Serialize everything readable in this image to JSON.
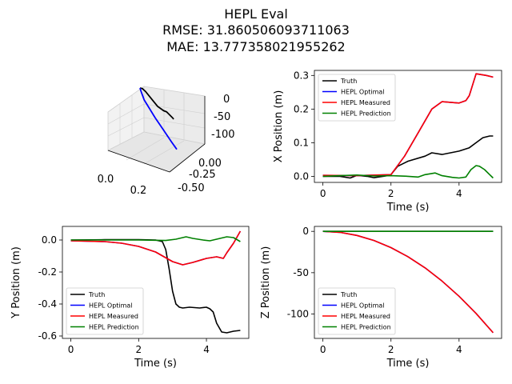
{
  "figure": {
    "title_line1": "HEPL Eval",
    "title_line2": "RMSE: 31.860506093711063",
    "title_line3": "MAE: 13.777358021955262"
  },
  "chart_data": [
    {
      "type": "line3d",
      "title": "",
      "x_ticks": [
        "0.0",
        "0.2"
      ],
      "y_ticks": [
        "0.00",
        "-0.25",
        "-0.50"
      ],
      "z_ticks": [
        "0",
        "-50",
        "-100"
      ],
      "series": [
        {
          "name": "Truth",
          "color": "#000000",
          "x": [
            0,
            0.02,
            0.02,
            0.03,
            0.05,
            0.08,
            0.1,
            0.12,
            0.12
          ],
          "y": [
            0,
            0,
            -0.01,
            -0.05,
            -0.35,
            -0.42,
            -0.43,
            -0.55,
            -0.57
          ],
          "z": [
            0,
            0,
            0,
            0,
            0,
            0,
            0,
            0,
            0
          ]
        },
        {
          "name": "HEPL Measured",
          "color": "#0000ff",
          "x": [
            0,
            0.005,
            0.02,
            0.08,
            0.15,
            0.22,
            0.3
          ],
          "y": [
            0,
            -0.005,
            -0.05,
            -0.15,
            -0.13,
            -0.1,
            0.05
          ],
          "z": [
            0,
            -5,
            -20,
            -45,
            -70,
            -95,
            -123
          ]
        }
      ]
    },
    {
      "type": "line",
      "xlabel": "Time (s)",
      "ylabel": "X Position (m)",
      "xlim": [
        -0.25,
        5.25
      ],
      "ylim": [
        -0.018,
        0.315
      ],
      "x_ticks": [
        "0",
        "2",
        "4"
      ],
      "y_ticks": [
        "0.0",
        "0.1",
        "0.2",
        "0.3"
      ],
      "legend": {
        "placement": "top-left"
      },
      "series": [
        {
          "name": "Truth",
          "color": "#000000",
          "x": [
            0,
            0.5,
            0.8,
            1.0,
            1.3,
            1.5,
            1.9,
            2.0,
            2.2,
            2.5,
            3.0,
            3.2,
            3.5,
            4.0,
            4.3,
            4.5,
            4.7,
            4.9,
            5.0
          ],
          "y": [
            0,
            0,
            -0.005,
            0.003,
            0,
            -0.004,
            0.002,
            0.005,
            0.03,
            0.045,
            0.06,
            0.07,
            0.065,
            0.075,
            0.085,
            0.1,
            0.115,
            0.12,
            0.12
          ]
        },
        {
          "name": "HEPL Optimal",
          "color": "#0000ff",
          "x": [
            0,
            1,
            2,
            2.4,
            2.8,
            3.2,
            3.5,
            4.0,
            4.2,
            4.3,
            4.5,
            4.8,
            5.0
          ],
          "y": [
            0.003,
            0.002,
            0.005,
            0.06,
            0.13,
            0.2,
            0.222,
            0.218,
            0.225,
            0.24,
            0.305,
            0.3,
            0.295
          ]
        },
        {
          "name": "HEPL Measured",
          "color": "#ff0000",
          "x": [
            0,
            1,
            2,
            2.4,
            2.8,
            3.2,
            3.5,
            4.0,
            4.2,
            4.3,
            4.5,
            4.8,
            5.0
          ],
          "y": [
            0.003,
            0.002,
            0.005,
            0.06,
            0.13,
            0.2,
            0.222,
            0.218,
            0.225,
            0.24,
            0.305,
            0.3,
            0.295
          ]
        },
        {
          "name": "HEPL Prediction",
          "color": "#008000",
          "x": [
            0,
            0.5,
            1.0,
            1.5,
            2.0,
            2.5,
            2.8,
            3.0,
            3.3,
            3.5,
            3.8,
            4.0,
            4.2,
            4.35,
            4.5,
            4.6,
            4.75,
            4.9,
            5.0
          ],
          "y": [
            0,
            0.002,
            0.004,
            0.001,
            0.002,
            0,
            -0.002,
            0.005,
            0.01,
            0.002,
            -0.003,
            -0.005,
            -0.002,
            0.02,
            0.032,
            0.03,
            0.02,
            0.005,
            -0.005
          ]
        }
      ]
    },
    {
      "type": "line",
      "xlabel": "Time (s)",
      "ylabel": "Y Position (m)",
      "xlim": [
        -0.25,
        5.25
      ],
      "ylim": [
        -0.615,
        0.085
      ],
      "x_ticks": [
        "0",
        "2",
        "4"
      ],
      "y_ticks": [
        "0.0",
        "-0.2",
        "-0.4",
        "-0.6"
      ],
      "legend": {
        "placement": "bottom-left"
      },
      "series": [
        {
          "name": "Truth",
          "color": "#000000",
          "x": [
            0,
            1,
            2,
            2.5,
            2.7,
            2.8,
            2.9,
            3.0,
            3.1,
            3.2,
            3.3,
            3.5,
            3.8,
            4.0,
            4.1,
            4.2,
            4.3,
            4.45,
            4.6,
            4.8,
            5.0
          ],
          "y": [
            0,
            0.002,
            0.002,
            0,
            -0.01,
            -0.06,
            -0.18,
            -0.32,
            -0.4,
            -0.42,
            -0.425,
            -0.42,
            -0.425,
            -0.42,
            -0.43,
            -0.45,
            -0.52,
            -0.575,
            -0.58,
            -0.57,
            -0.565
          ]
        },
        {
          "name": "HEPL Optimal",
          "color": "#0000ff",
          "x": [
            0,
            1.0,
            1.5,
            2.0,
            2.5,
            3.0,
            3.3,
            3.6,
            4.0,
            4.3,
            4.5,
            4.6,
            4.8,
            5.0
          ],
          "y": [
            -0.005,
            -0.01,
            -0.02,
            -0.04,
            -0.075,
            -0.135,
            -0.155,
            -0.14,
            -0.115,
            -0.105,
            -0.115,
            -0.08,
            -0.02,
            0.055
          ]
        },
        {
          "name": "HEPL Measured",
          "color": "#ff0000",
          "x": [
            0,
            1.0,
            1.5,
            2.0,
            2.5,
            3.0,
            3.3,
            3.6,
            4.0,
            4.3,
            4.5,
            4.6,
            4.8,
            5.0
          ],
          "y": [
            -0.005,
            -0.01,
            -0.02,
            -0.04,
            -0.075,
            -0.135,
            -0.155,
            -0.14,
            -0.115,
            -0.105,
            -0.115,
            -0.08,
            -0.02,
            0.055
          ]
        },
        {
          "name": "HEPL Prediction",
          "color": "#008000",
          "x": [
            0,
            1,
            2,
            2.8,
            3.1,
            3.4,
            3.6,
            3.9,
            4.1,
            4.4,
            4.6,
            4.8,
            5.0
          ],
          "y": [
            0,
            0,
            0,
            -0.003,
            0.005,
            0.02,
            0.01,
            0,
            -0.005,
            0.01,
            0.02,
            0.015,
            -0.01
          ]
        }
      ]
    },
    {
      "type": "line",
      "xlabel": "Time (s)",
      "ylabel": "Z Position (m)",
      "xlim": [
        -0.25,
        5.25
      ],
      "ylim": [
        -129.5,
        6.0
      ],
      "x_ticks": [
        "0",
        "2",
        "4"
      ],
      "y_ticks": [
        "0",
        "-50",
        "-100"
      ],
      "legend": {
        "placement": "bottom-left"
      },
      "series": [
        {
          "name": "Truth",
          "color": "#000000",
          "x": [
            0,
            5
          ],
          "y": [
            0,
            0
          ]
        },
        {
          "name": "HEPL Optimal",
          "color": "#0000ff",
          "x": [
            0,
            0.5,
            1.0,
            1.5,
            2.0,
            2.5,
            3.0,
            3.5,
            4.0,
            4.5,
            5.0
          ],
          "y": [
            0,
            -1.2,
            -4.9,
            -11.0,
            -19.6,
            -30.7,
            -44.1,
            -60.1,
            -78.5,
            -99.3,
            -122.6
          ]
        },
        {
          "name": "HEPL Measured",
          "color": "#ff0000",
          "x": [
            0,
            0.5,
            1.0,
            1.5,
            2.0,
            2.5,
            3.0,
            3.5,
            4.0,
            4.5,
            5.0
          ],
          "y": [
            0,
            -1.2,
            -4.9,
            -11.0,
            -19.6,
            -30.7,
            -44.1,
            -60.1,
            -78.5,
            -99.3,
            -122.6
          ]
        },
        {
          "name": "HEPL Prediction",
          "color": "#008000",
          "x": [
            0,
            5
          ],
          "y": [
            0,
            0
          ]
        }
      ]
    }
  ]
}
